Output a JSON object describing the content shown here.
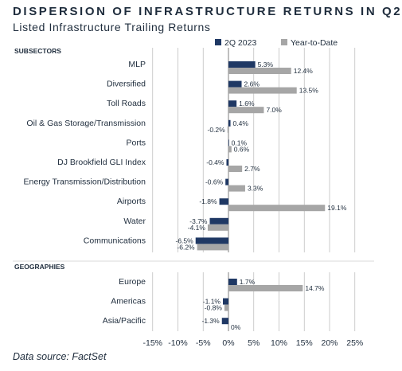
{
  "title": "DISPERSION OF INFRASTRUCTURE RETURNS IN Q2",
  "subtitle": "Listed Infrastructure Trailing Returns",
  "source": "Data source: FactSet",
  "colors": {
    "q2": "#1f3864",
    "ytd": "#a6a6a6",
    "grid": "#bfbfbf",
    "text": "#1f2d3d"
  },
  "chart_data": {
    "type": "bar",
    "orientation": "horizontal",
    "legend_position": "top-right",
    "series": [
      {
        "name": "2Q 2023",
        "color": "#1f3864"
      },
      {
        "name": "Year-to-Date",
        "color": "#a6a6a6"
      }
    ],
    "xlim": [
      -15,
      25
    ],
    "xticks": [
      "-15%",
      "-10%",
      "-5%",
      "0%",
      "5%",
      "10%",
      "15%",
      "20%",
      "25%"
    ],
    "grid": true,
    "groups": [
      {
        "label": "SUBSECTORS",
        "categories": [
          "MLP",
          "Diversified",
          "Toll Roads",
          "Oil & Gas Storage/Transmission",
          "Ports",
          "DJ Brookfield GLI Index",
          "Energy Transmission/Distribution",
          "Airports",
          "Water",
          "Communications"
        ],
        "q2": [
          5.3,
          2.6,
          1.6,
          0.4,
          0.1,
          -0.4,
          -0.6,
          -1.8,
          -3.7,
          -6.5
        ],
        "ytd": [
          12.4,
          13.5,
          7.0,
          -0.2,
          0.6,
          2.7,
          3.3,
          19.1,
          -4.1,
          -6.2
        ],
        "q2_labels": [
          "5.3%",
          "2.6%",
          "1.6%",
          "0.4%",
          "0.1%",
          "-0.4%",
          "-0.6%",
          "-1.8%",
          "-3.7%",
          "-6.5%"
        ],
        "ytd_labels": [
          "12.4%",
          "13.5%",
          "7.0%",
          "-0.2%",
          "0.6%",
          "2.7%",
          "3.3%",
          "19.1%",
          "-4.1%",
          "-6.2%"
        ]
      },
      {
        "label": "GEOGRAPHIES",
        "categories": [
          "Europe",
          "Americas",
          "Asia/Pacific"
        ],
        "q2": [
          1.7,
          -1.1,
          -1.3
        ],
        "ytd": [
          14.7,
          -0.8,
          0
        ],
        "q2_labels": [
          "1.7%",
          "-1.1%",
          "-1.3%"
        ],
        "ytd_labels": [
          "14.7%",
          "-0.8%",
          "0%"
        ]
      }
    ]
  }
}
